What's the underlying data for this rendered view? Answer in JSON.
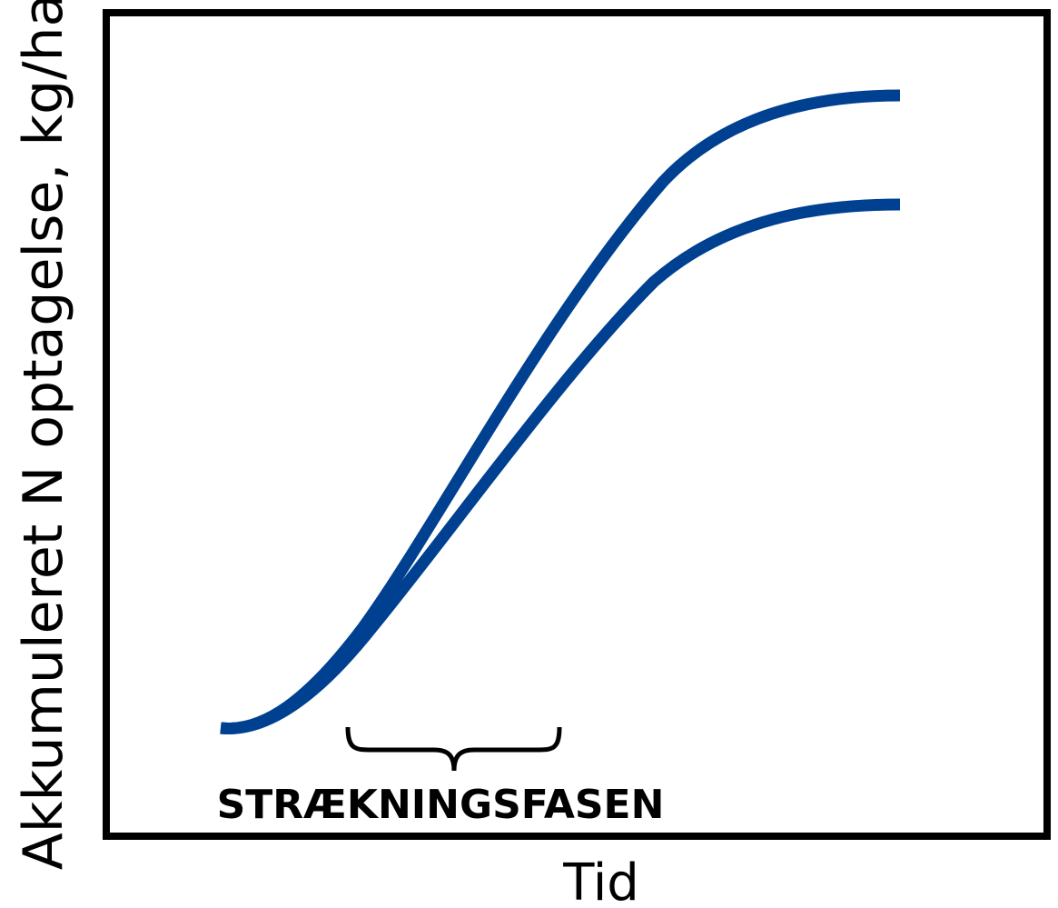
{
  "axes": {
    "y_label": "Akkumuleret N optagelse, kg/ha",
    "x_label": "Tid"
  },
  "annotation": "STRÆKNINGSFASEN"
}
